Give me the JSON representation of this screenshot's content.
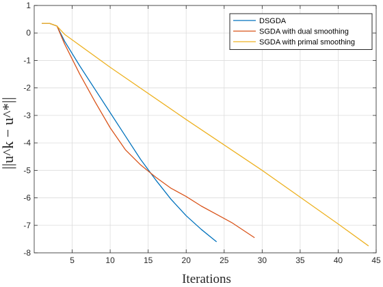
{
  "chart_data": {
    "type": "line",
    "xlabel": "Iterations",
    "ylabel": "||u^k − u^*||",
    "xlim": [
      0,
      45
    ],
    "ylim": [
      -8,
      1
    ],
    "xticks": [
      5,
      10,
      15,
      20,
      25,
      30,
      35,
      40,
      45
    ],
    "yticks": [
      -8,
      -7,
      -6,
      -5,
      -4,
      -3,
      -2,
      -1,
      0,
      1
    ],
    "grid": true,
    "legend_position": "top-right",
    "series": [
      {
        "name": "DSGDA",
        "color": "#0072BD",
        "x": [
          1,
          2,
          3,
          4,
          6,
          8,
          10,
          12,
          14,
          16,
          18,
          20,
          22,
          24
        ],
        "y": [
          0.35,
          0.35,
          0.25,
          -0.3,
          -1.2,
          -2.05,
          -2.9,
          -3.75,
          -4.6,
          -5.35,
          -6.05,
          -6.65,
          -7.15,
          -7.6
        ]
      },
      {
        "name": "SGDA with dual smoothing",
        "color": "#D95319",
        "x": [
          1,
          2,
          3,
          4,
          6,
          8,
          10,
          12,
          14,
          16,
          18,
          20,
          22,
          24,
          26,
          29
        ],
        "y": [
          0.35,
          0.35,
          0.25,
          -0.4,
          -1.5,
          -2.5,
          -3.45,
          -4.25,
          -4.8,
          -5.25,
          -5.65,
          -5.95,
          -6.3,
          -6.6,
          -6.9,
          -7.45
        ]
      },
      {
        "name": "SGDA with primal smoothing",
        "color": "#EDB120",
        "x": [
          1,
          2,
          3,
          4,
          10,
          20,
          30,
          40,
          44
        ],
        "y": [
          0.35,
          0.35,
          0.25,
          -0.05,
          -1.25,
          -3.15,
          -5.0,
          -6.95,
          -7.75
        ]
      }
    ]
  }
}
